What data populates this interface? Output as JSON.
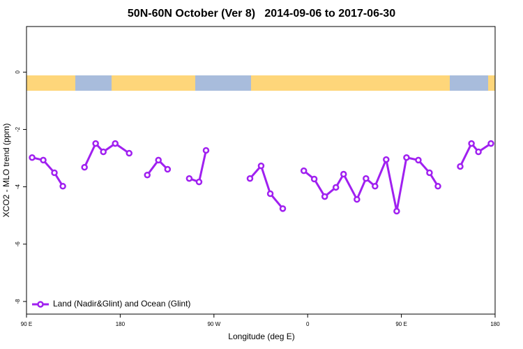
{
  "chart_data": {
    "type": "line",
    "title": "50N-60N October (Ver 8)   2014-09-06 to 2017-06-30",
    "x_label": "Longitude (deg E)",
    "y_label": "XCO2 - MLO trend (ppm)",
    "x": [
      95.4,
      106.1,
      116.8,
      124.9,
      null,
      145.7,
      156.4,
      163.8,
      175.2,
      188.6,
      null,
      206.0,
      216.7,
      225.5,
      null,
      246.3,
      255.7,
      262.4,
      null,
      304.6,
      315.3,
      324.1,
      336.1,
      null,
      356.3,
      366.3,
      376.4,
      387.1,
      394.5,
      407.3,
      416.0,
      424.7,
      435.4,
      445.5,
      454.9,
      466.3,
      477.0,
      485.1,
      null,
      506.5,
      517.3,
      524.0,
      536.0
    ],
    "series": [
      {
        "name": "Land (Nadir&Glint) and Ocean (Glint)",
        "color": "#a020f0",
        "values": [
          -2.98,
          -3.07,
          -3.51,
          -3.98,
          null,
          -3.32,
          -2.49,
          -2.78,
          -2.49,
          -2.83,
          null,
          -3.59,
          -3.07,
          -3.39,
          null,
          -3.71,
          -3.83,
          -2.73,
          null,
          -3.71,
          -3.27,
          -4.24,
          -4.76,
          null,
          -3.44,
          -3.73,
          -4.34,
          -4.02,
          -3.56,
          -4.44,
          -3.71,
          -3.98,
          -3.05,
          -4.85,
          -2.98,
          -3.07,
          -3.51,
          -3.98,
          null,
          -3.29,
          -2.49,
          -2.78,
          -2.49
        ]
      }
    ],
    "xlim": [
      90,
      540
    ],
    "ylim": [
      -8.44,
      1.59
    ],
    "xticks": [
      {
        "value": 90,
        "label": "90 E"
      },
      180,
      {
        "value": 270,
        "label": "90 W"
      },
      {
        "value": 360,
        "label": "0"
      },
      {
        "value": 450,
        "label": "90 E"
      },
      {
        "value": 540,
        "label": "180"
      }
    ],
    "yticks": [
      0,
      -2,
      -4,
      -6,
      -8
    ],
    "legend": "bottomleft",
    "grid": false
  }
}
